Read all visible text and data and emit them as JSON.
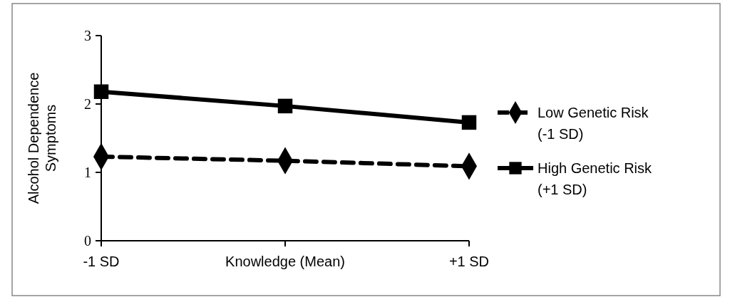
{
  "chart_data": {
    "type": "line",
    "ylabel": "Alcohol Dependence Symptoms",
    "categories": [
      "-1 SD",
      "Knowledge (Mean)",
      "+1 SD"
    ],
    "ylim": [
      0,
      3
    ],
    "yticks": [
      0,
      1,
      2,
      3
    ],
    "grid": false,
    "legend": "right",
    "series": [
      {
        "name": "Low Genetic Risk\n(-1 SD)",
        "color": "#000000",
        "values": [
          1.23,
          1.17,
          1.09
        ],
        "marker": "diamond",
        "line_style": "dashed"
      },
      {
        "name": "High Genetic Risk\n(+1 SD)",
        "color": "#000000",
        "values": [
          2.18,
          1.97,
          1.73
        ],
        "marker": "square",
        "line_style": "solid"
      }
    ]
  }
}
